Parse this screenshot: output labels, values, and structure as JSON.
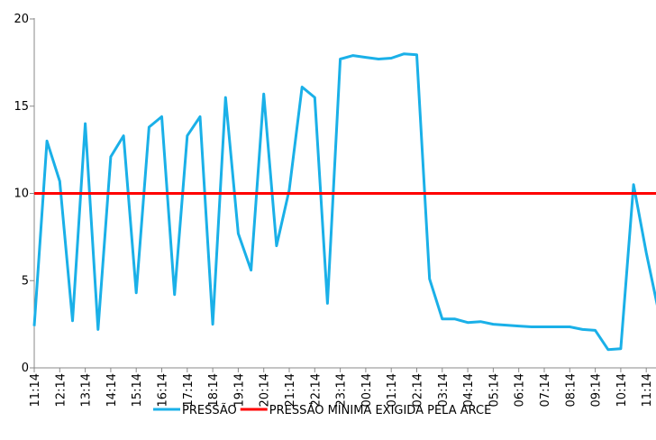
{
  "chart_data": {
    "type": "line",
    "title": "",
    "xlabel": "",
    "ylabel": "",
    "ylim": [
      0,
      20
    ],
    "yticks": [
      0,
      5,
      10,
      15,
      20
    ],
    "grid": false,
    "legend_position": "bottom",
    "x_tick_labels": [
      "11:14",
      "12:14",
      "13:14",
      "14:14",
      "15:14",
      "16:14",
      "17:14",
      "18:14",
      "19:14",
      "20:14",
      "21:14",
      "22:14",
      "23:14",
      "00:14",
      "01:14",
      "02:14",
      "03:14",
      "04:14",
      "05:14",
      "06:14",
      "07:14",
      "08:14",
      "09:14",
      "10:14",
      "11:14"
    ],
    "series": [
      {
        "name": "PRESSÃO",
        "color": "#1ab0e8",
        "values": [
          2.4,
          13.0,
          10.7,
          2.7,
          14.0,
          2.2,
          12.1,
          13.3,
          4.3,
          13.8,
          14.4,
          4.2,
          13.3,
          14.4,
          2.5,
          15.5,
          7.7,
          5.6,
          15.7,
          7.0,
          10.2,
          16.1,
          15.5,
          3.7,
          17.7,
          17.9,
          17.8,
          17.7,
          17.75,
          18.0,
          17.95,
          5.1,
          2.8,
          2.8,
          2.6,
          2.65,
          2.5,
          2.45,
          2.4,
          2.35,
          2.35,
          2.35,
          2.35,
          2.2,
          2.15,
          1.05,
          1.1,
          10.5,
          6.6,
          3.1
        ]
      },
      {
        "name": "PRESSÃO MÍNIMA EXIGIDA PELA ARCE",
        "color": "#ff0000",
        "values": [
          10,
          10
        ]
      }
    ]
  }
}
